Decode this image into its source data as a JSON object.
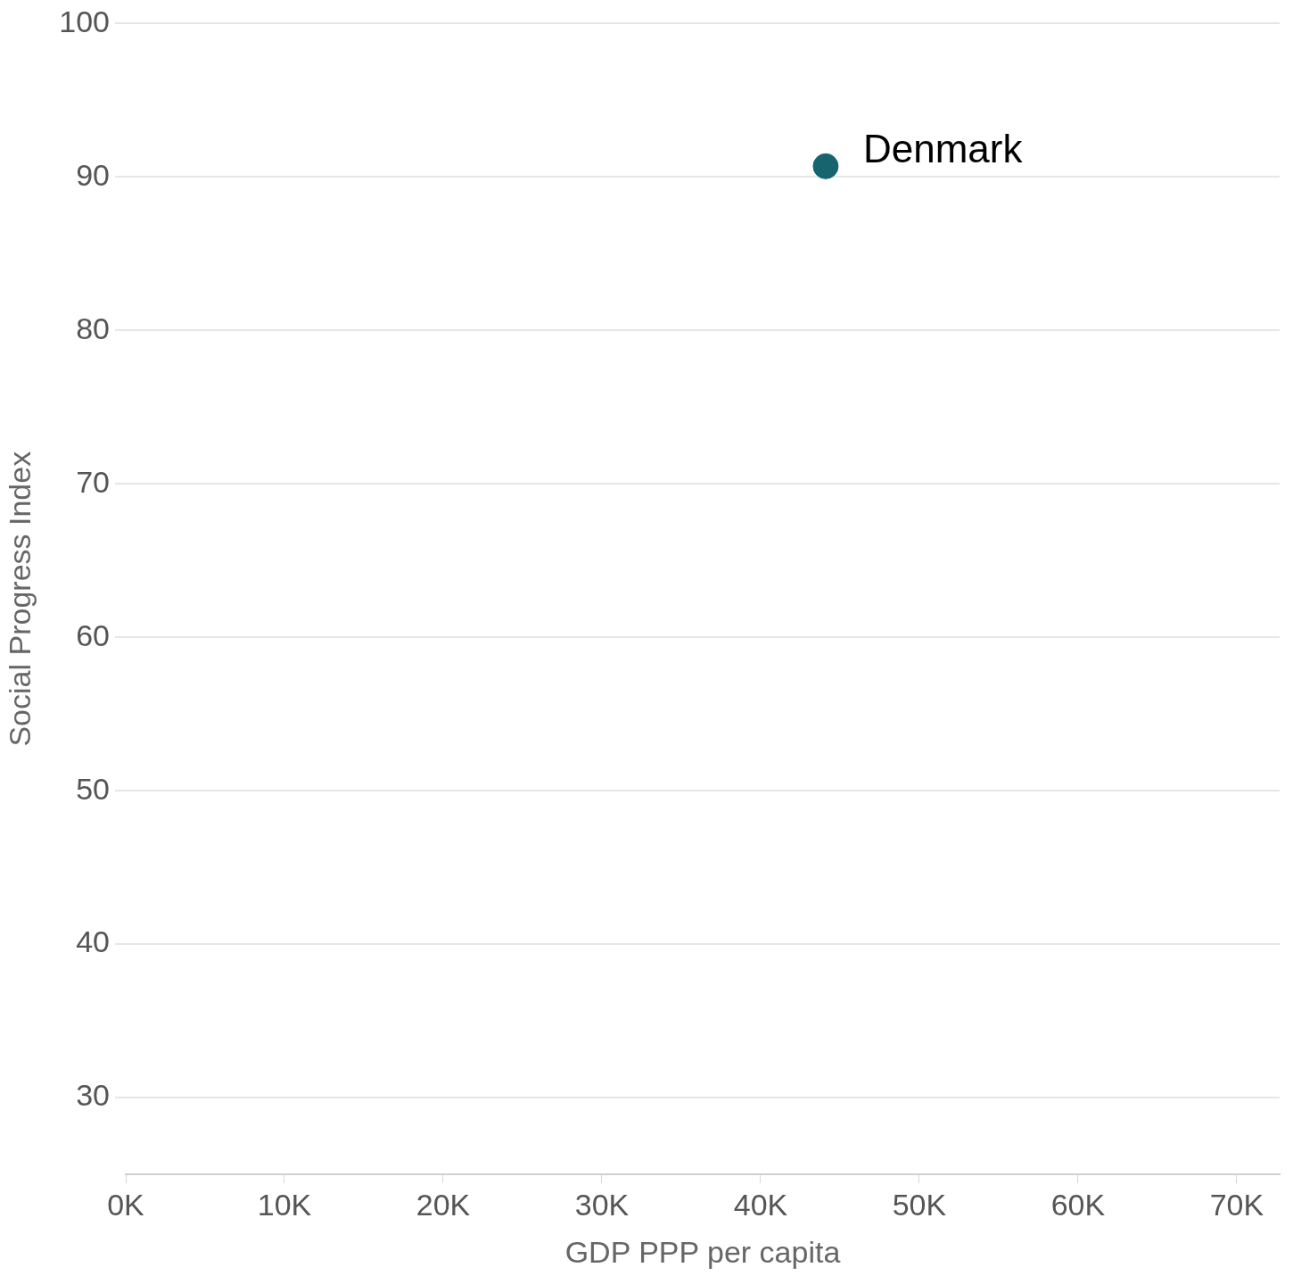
{
  "chart_data": {
    "type": "scatter",
    "xlabel": "GDP PPP per capita",
    "ylabel": "Social Progress Index",
    "x": [
      44100
    ],
    "series": [
      {
        "color": "#17646e",
        "values": [
          90.7
        ]
      }
    ],
    "xlim": [
      0,
      72700
    ],
    "xticks": [
      {
        "value": 0,
        "label": "0K"
      },
      {
        "value": 10000,
        "label": "10K"
      },
      {
        "value": 20000,
        "label": "20K"
      },
      {
        "value": 30000,
        "label": "30K"
      },
      {
        "value": 40000,
        "label": "40K"
      },
      {
        "value": 50000,
        "label": "50K"
      },
      {
        "value": 60000,
        "label": "60K"
      },
      {
        "value": 70000,
        "label": "70K"
      }
    ],
    "ylim": [
      25,
      100
    ],
    "yticks": [
      30,
      40,
      50,
      60,
      70,
      80,
      90,
      100
    ],
    "grid": "y",
    "legend": false,
    "marker": "circle",
    "annotations": [
      {
        "text": "Denmark",
        "x": 44100,
        "y": 90.7
      }
    ]
  }
}
